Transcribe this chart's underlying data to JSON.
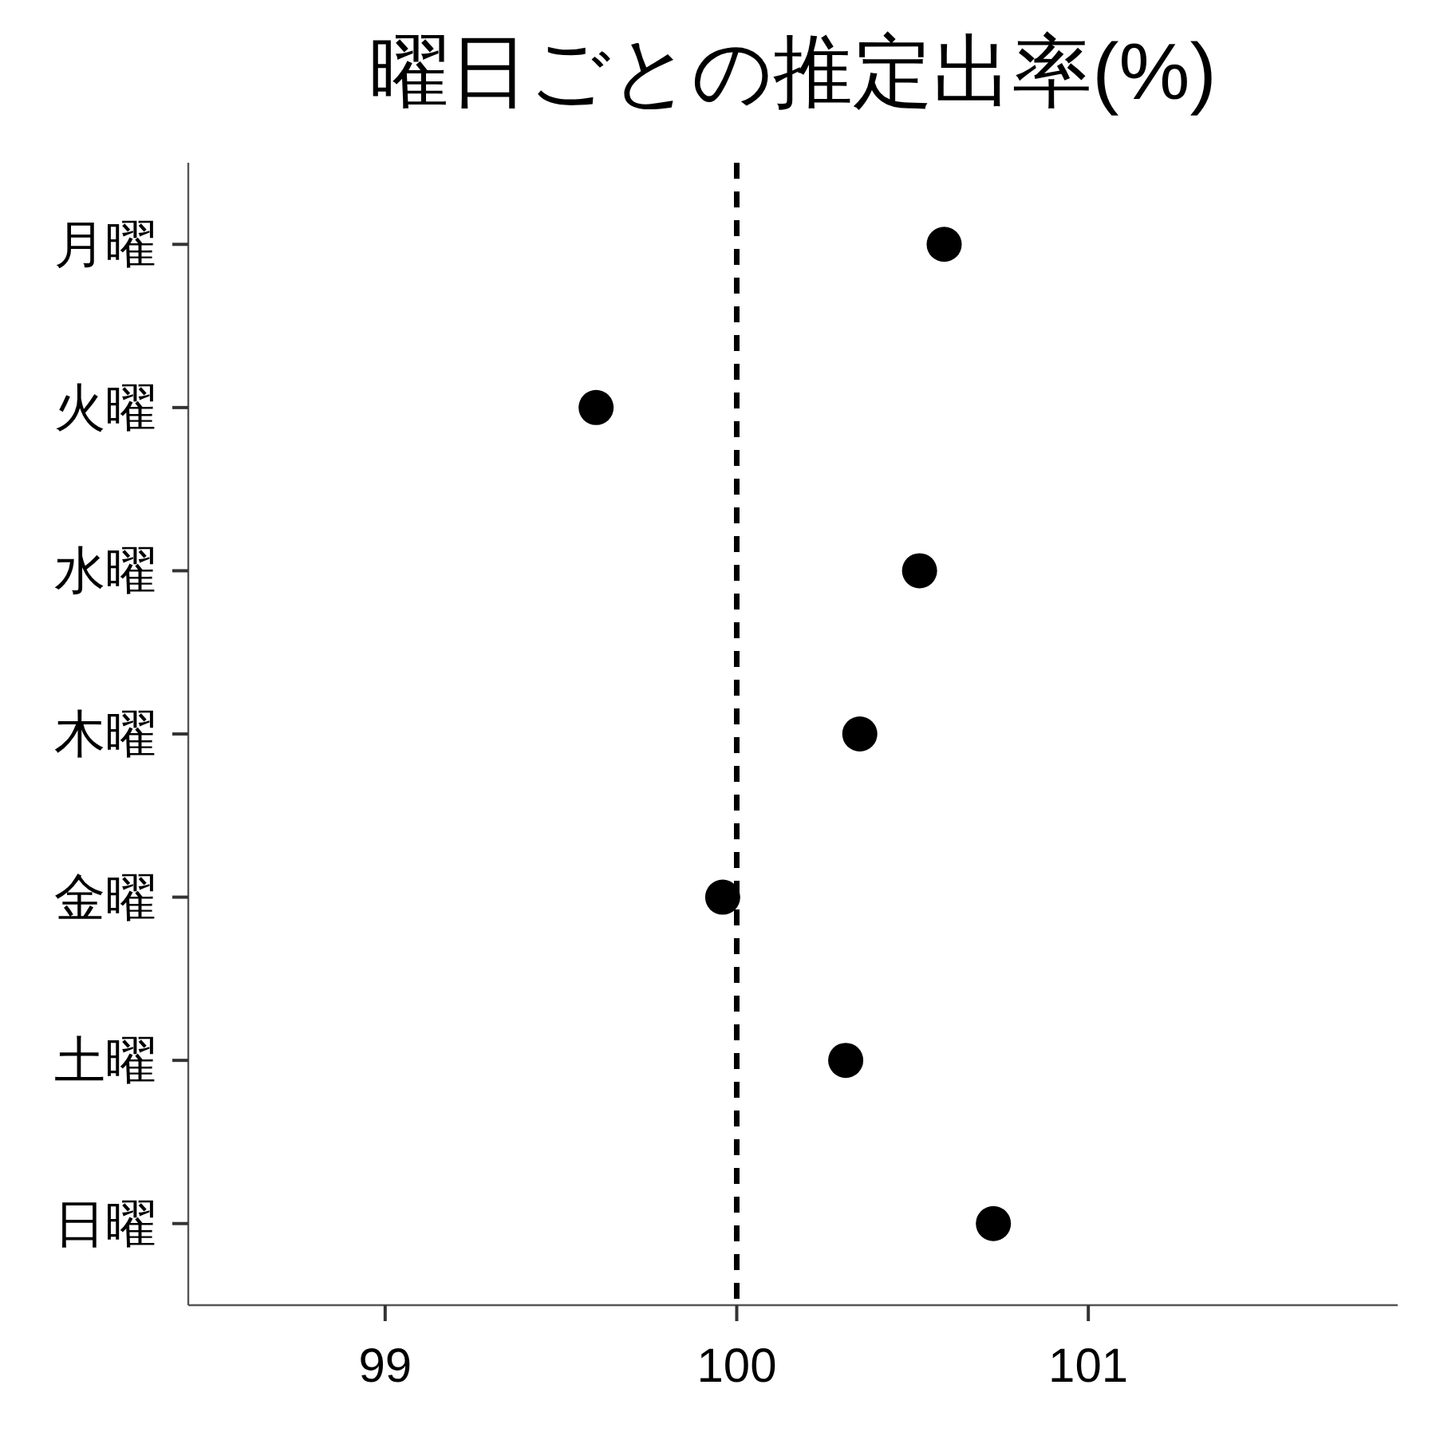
{
  "chart_data": {
    "type": "scatter",
    "orientation": "horizontal",
    "title": "曜日ごとの推定出率(%)",
    "categories": [
      "月曜",
      "火曜",
      "水曜",
      "木曜",
      "金曜",
      "土曜",
      "日曜"
    ],
    "values": [
      100.59,
      99.6,
      100.52,
      100.35,
      99.96,
      100.31,
      100.73
    ],
    "color": "#000000",
    "marker": "circle",
    "xlim": [
      98.44,
      101.88
    ],
    "xticks": [
      99,
      100,
      101
    ],
    "ref_lines": [
      {
        "axis": "x",
        "value": 100,
        "color": "#000000",
        "line_style": "dashed"
      }
    ]
  }
}
